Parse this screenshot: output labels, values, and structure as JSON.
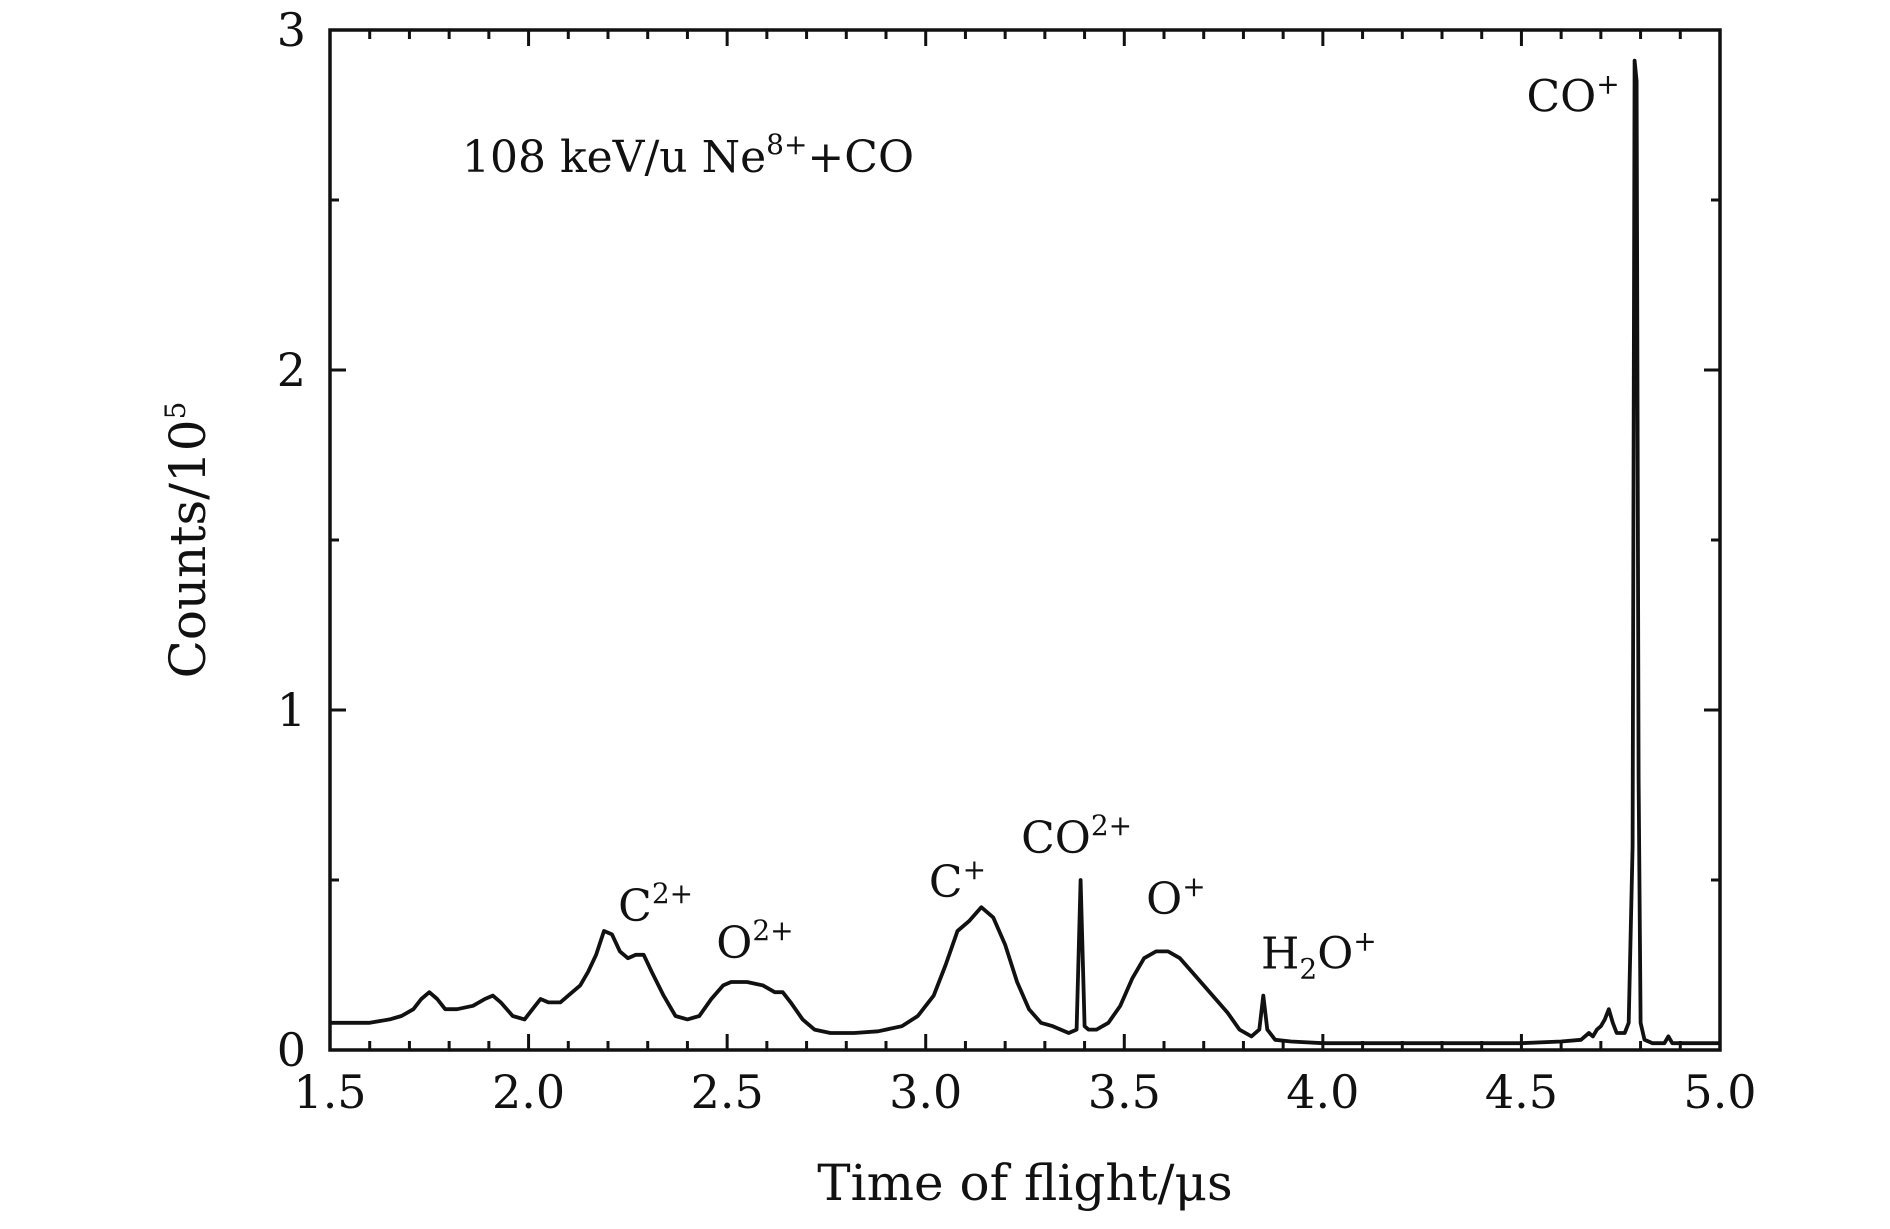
{
  "chart_data": {
    "type": "line",
    "annotation": {
      "prefix": "108 keV/u Ne",
      "sup": "8+",
      "suffix": "+CO"
    },
    "xlabel": "Time of flight/μs",
    "ylabel": {
      "base": "Counts/10",
      "sup": "5"
    },
    "xlim": [
      1.5,
      5.0
    ],
    "ylim": [
      0,
      3
    ],
    "x_ticks": [
      "1.5",
      "2.0",
      "2.5",
      "3.0",
      "3.5",
      "4.0",
      "4.5",
      "5.0"
    ],
    "y_ticks": [
      "0",
      "1",
      "2",
      "3"
    ],
    "grid": false,
    "peak_labels": [
      {
        "x": 2.32,
        "y": 0.38,
        "base": "C",
        "sup": "2+"
      },
      {
        "x": 2.57,
        "y": 0.27,
        "base": "O",
        "sup": "2+"
      },
      {
        "x": 3.08,
        "y": 0.45,
        "base": "C",
        "sup": "+"
      },
      {
        "x": 3.38,
        "y": 0.58,
        "base": "CO",
        "sup": "2+"
      },
      {
        "x": 3.63,
        "y": 0.4,
        "base": "O",
        "sup": "+"
      },
      {
        "x": 3.99,
        "y": 0.24,
        "base": "H",
        "sub": "2",
        "after": "O",
        "sup": "+"
      },
      {
        "x": 4.63,
        "y": 2.76,
        "base": "CO",
        "sup": "+"
      }
    ],
    "series": [
      {
        "x": [
          1.5,
          1.55,
          1.6,
          1.65,
          1.68,
          1.71,
          1.73,
          1.75,
          1.77,
          1.79,
          1.82,
          1.86,
          1.89,
          1.91,
          1.93,
          1.96,
          1.99,
          2.01,
          2.03,
          2.05,
          2.08,
          2.1,
          2.13,
          2.15,
          2.17,
          2.19,
          2.21,
          2.23,
          2.25,
          2.27,
          2.29,
          2.31,
          2.34,
          2.37,
          2.4,
          2.43,
          2.46,
          2.49,
          2.51,
          2.55,
          2.59,
          2.62,
          2.64,
          2.66,
          2.69,
          2.72,
          2.76,
          2.82,
          2.88,
          2.94,
          2.98,
          3.02,
          3.05,
          3.08,
          3.11,
          3.14,
          3.17,
          3.2,
          3.23,
          3.26,
          3.29,
          3.32,
          3.34,
          3.36,
          3.38,
          3.39,
          3.4,
          3.41,
          3.43,
          3.46,
          3.49,
          3.52,
          3.55,
          3.58,
          3.61,
          3.64,
          3.67,
          3.7,
          3.73,
          3.76,
          3.79,
          3.82,
          3.84,
          3.85,
          3.86,
          3.88,
          3.92,
          4.0,
          4.1,
          4.2,
          4.3,
          4.4,
          4.5,
          4.6,
          4.65,
          4.67,
          4.68,
          4.69,
          4.7,
          4.71,
          4.72,
          4.73,
          4.74,
          4.76,
          4.77,
          4.78,
          4.785,
          4.79,
          4.795,
          4.8,
          4.81,
          4.83,
          4.85,
          4.86,
          4.87,
          4.88,
          4.9,
          4.95,
          5.0
        ],
        "y": [
          0.08,
          0.08,
          0.08,
          0.09,
          0.1,
          0.12,
          0.15,
          0.17,
          0.15,
          0.12,
          0.12,
          0.13,
          0.15,
          0.16,
          0.14,
          0.1,
          0.09,
          0.12,
          0.15,
          0.14,
          0.14,
          0.16,
          0.19,
          0.23,
          0.28,
          0.35,
          0.34,
          0.29,
          0.27,
          0.28,
          0.28,
          0.23,
          0.16,
          0.1,
          0.09,
          0.1,
          0.15,
          0.19,
          0.2,
          0.2,
          0.19,
          0.17,
          0.17,
          0.14,
          0.09,
          0.06,
          0.05,
          0.05,
          0.055,
          0.07,
          0.1,
          0.16,
          0.25,
          0.35,
          0.38,
          0.42,
          0.39,
          0.31,
          0.2,
          0.12,
          0.08,
          0.07,
          0.06,
          0.05,
          0.06,
          0.5,
          0.07,
          0.06,
          0.06,
          0.08,
          0.13,
          0.21,
          0.27,
          0.29,
          0.29,
          0.27,
          0.23,
          0.19,
          0.15,
          0.11,
          0.06,
          0.04,
          0.06,
          0.16,
          0.06,
          0.03,
          0.025,
          0.02,
          0.02,
          0.02,
          0.02,
          0.02,
          0.02,
          0.025,
          0.03,
          0.05,
          0.04,
          0.06,
          0.07,
          0.09,
          0.12,
          0.08,
          0.05,
          0.05,
          0.08,
          0.6,
          2.91,
          2.85,
          0.8,
          0.08,
          0.03,
          0.02,
          0.02,
          0.02,
          0.04,
          0.02,
          0.02,
          0.02,
          0.02
        ]
      }
    ]
  }
}
